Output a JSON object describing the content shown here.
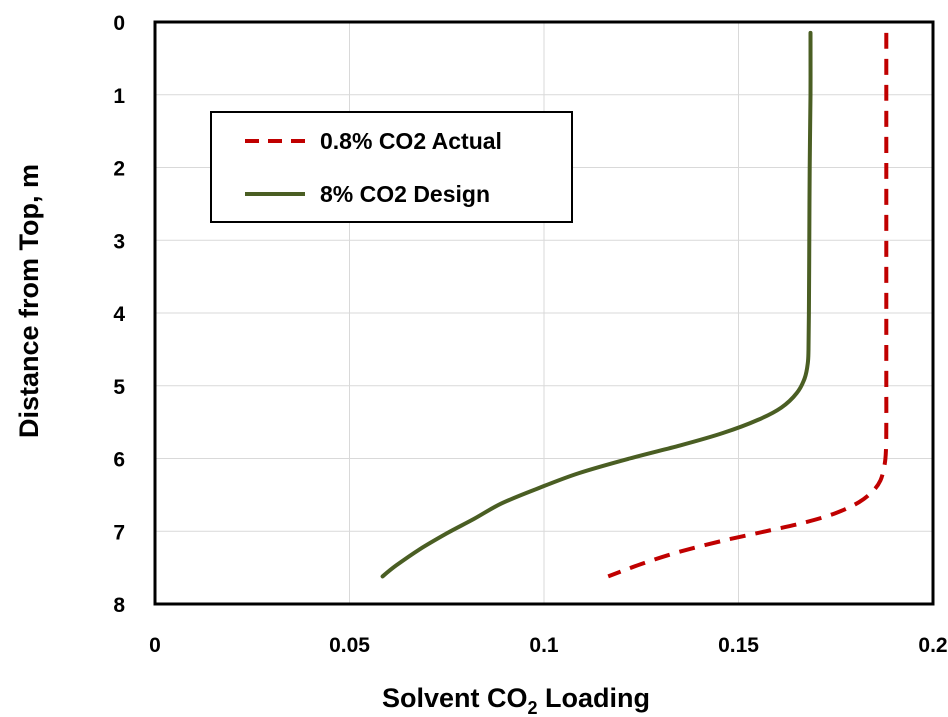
{
  "chart_data": {
    "type": "line",
    "xlabel": {
      "main": "Solvent CO",
      "subscript": "2",
      "suffix": " Loading"
    },
    "ylabel": "Distance from Top, m",
    "xlim": [
      0,
      0.2
    ],
    "ylim": [
      0,
      8
    ],
    "y_inverted": true,
    "x_ticks": [
      0,
      0.05,
      0.1,
      0.15,
      0.2
    ],
    "x_tick_labels": [
      "0",
      "0.05",
      "0.1",
      "0.15",
      "0.2"
    ],
    "y_ticks": [
      0,
      1,
      2,
      3,
      4,
      5,
      6,
      7,
      8
    ],
    "y_tick_labels": [
      "0",
      "1",
      "2",
      "3",
      "4",
      "5",
      "6",
      "7",
      "8"
    ],
    "grid": true,
    "legend_position": "upper-left",
    "series": [
      {
        "name": "0.8% CO2 Actual",
        "color": "#c00000",
        "style": "dashed",
        "x": [
          0.188,
          0.188,
          0.188,
          0.188,
          0.188,
          0.188,
          0.188,
          0.1879,
          0.1875,
          0.1865,
          0.1845,
          0.181,
          0.175,
          0.167,
          0.157,
          0.146,
          0.135,
          0.125,
          0.1165
        ],
        "y": [
          0.15,
          1,
          2,
          3,
          4,
          5,
          5.5,
          5.9,
          6.1,
          6.3,
          6.45,
          6.6,
          6.75,
          6.88,
          7.0,
          7.13,
          7.28,
          7.45,
          7.62
        ]
      },
      {
        "name": "8% CO2 Design",
        "color": "#4a5e23",
        "style": "solid",
        "x": [
          0.1685,
          0.1685,
          0.1683,
          0.1682,
          0.1681,
          0.168,
          0.1678,
          0.167,
          0.165,
          0.161,
          0.155,
          0.146,
          0.135,
          0.122,
          0.109,
          0.098,
          0.089,
          0.082,
          0.075,
          0.068,
          0.062,
          0.0585
        ],
        "y": [
          0.15,
          1,
          2,
          3,
          4,
          4.5,
          4.7,
          4.9,
          5.1,
          5.3,
          5.47,
          5.65,
          5.82,
          6.0,
          6.2,
          6.42,
          6.62,
          6.83,
          7.03,
          7.25,
          7.47,
          7.62
        ]
      }
    ]
  }
}
